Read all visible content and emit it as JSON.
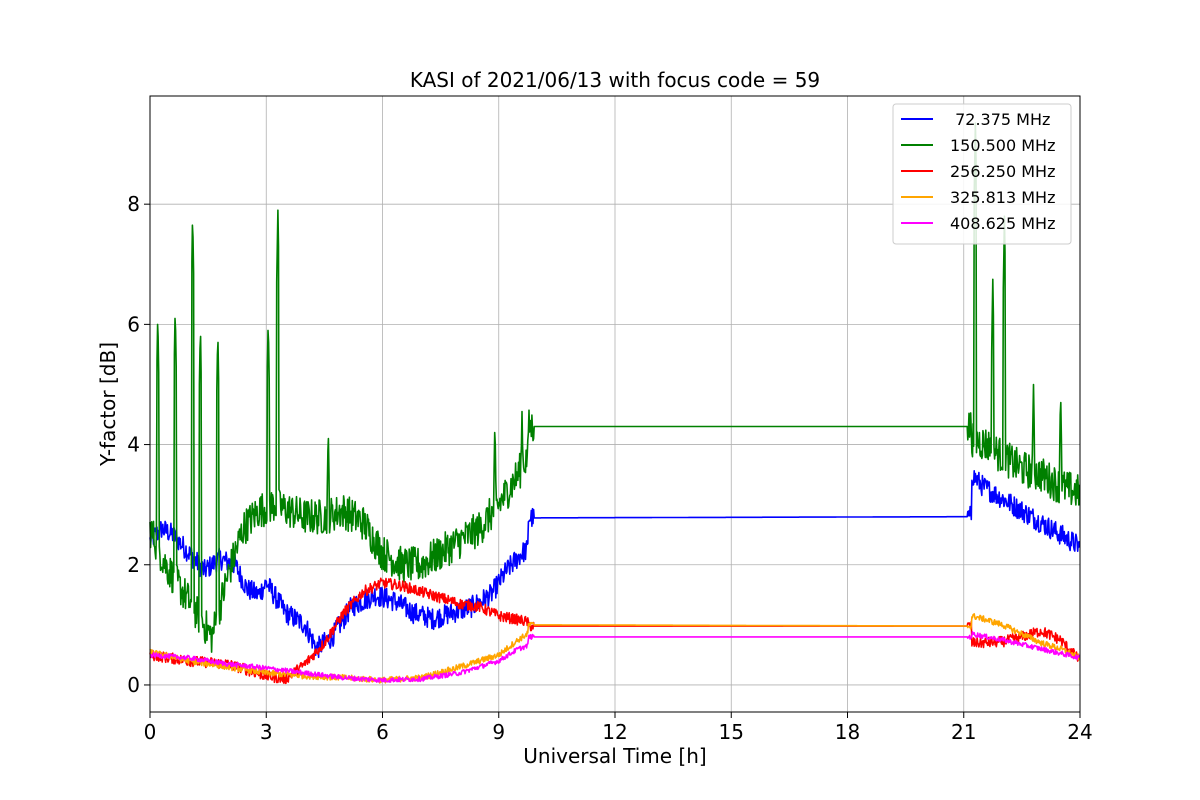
{
  "chart_data": {
    "type": "line",
    "title": "KASI of 2021/06/13 with focus code = 59",
    "xlabel": "Universal Time [h]",
    "ylabel": "Y-factor [dB]",
    "xlim": [
      0,
      24
    ],
    "ylim": [
      -0.45,
      9.8
    ],
    "xticks": [
      0,
      3,
      6,
      9,
      12,
      15,
      18,
      21,
      24
    ],
    "yticks": [
      0,
      2,
      4,
      6,
      8
    ],
    "grid": true,
    "legend_position": "upper right",
    "series": [
      {
        "name": "72.375 MHz",
        "legend_label": " 72.375 MHz",
        "color": "#0000ff",
        "noise": 0.18,
        "x": [
          0,
          0.3,
          0.6,
          1.0,
          1.4,
          1.8,
          2.2,
          2.5,
          2.8,
          3.0,
          3.5,
          4.0,
          4.3,
          4.7,
          5.2,
          5.8,
          6.3,
          6.8,
          7.3,
          7.8,
          8.3,
          8.8,
          9.2,
          9.6,
          9.75,
          9.76,
          21.2,
          21.21,
          21.5,
          22.0,
          22.5,
          23.0,
          23.5,
          24.0
        ],
        "y": [
          2.4,
          2.6,
          2.5,
          2.2,
          1.9,
          2.1,
          2.0,
          1.6,
          1.5,
          1.7,
          1.2,
          1.0,
          0.6,
          0.8,
          1.3,
          1.5,
          1.4,
          1.2,
          1.1,
          1.2,
          1.3,
          1.5,
          1.9,
          2.2,
          2.25,
          2.78,
          2.8,
          3.5,
          3.3,
          3.1,
          2.9,
          2.7,
          2.5,
          2.3
        ]
      },
      {
        "name": "150.500 MHz",
        "legend_label": "150.500 MHz",
        "color": "#008000",
        "noise": 0.3,
        "x": [
          0,
          0.4,
          0.8,
          1.2,
          1.6,
          2.0,
          2.4,
          2.8,
          3.2,
          3.6,
          4.0,
          4.5,
          5.0,
          5.5,
          6.0,
          6.5,
          7.0,
          7.5,
          8.0,
          8.5,
          9.0,
          9.4,
          9.75,
          9.76,
          21.2,
          21.21,
          21.6,
          22.0,
          22.5,
          23.0,
          23.5,
          24.0
        ],
        "y": [
          2.6,
          2.0,
          1.6,
          1.2,
          0.8,
          1.8,
          2.6,
          2.9,
          3.0,
          2.9,
          2.8,
          2.8,
          2.9,
          2.7,
          2.2,
          2.0,
          2.0,
          2.2,
          2.4,
          2.6,
          3.0,
          3.4,
          3.8,
          4.3,
          4.3,
          4.1,
          4.0,
          3.8,
          3.6,
          3.5,
          3.3,
          3.2
        ],
        "spikes": [
          {
            "x": 0.2,
            "y": 6.2
          },
          {
            "x": 0.65,
            "y": 6.3
          },
          {
            "x": 1.1,
            "y": 7.85
          },
          {
            "x": 1.3,
            "y": 6.0
          },
          {
            "x": 1.75,
            "y": 5.9
          },
          {
            "x": 3.05,
            "y": 6.1
          },
          {
            "x": 3.3,
            "y": 7.9
          },
          {
            "x": 4.6,
            "y": 4.3
          },
          {
            "x": 8.9,
            "y": 4.4
          },
          {
            "x": 9.6,
            "y": 4.55
          },
          {
            "x": 21.3,
            "y": 9.35
          },
          {
            "x": 21.75,
            "y": 6.75
          },
          {
            "x": 22.05,
            "y": 7.8
          },
          {
            "x": 22.8,
            "y": 5.0
          },
          {
            "x": 23.5,
            "y": 4.9
          }
        ]
      },
      {
        "name": "256.250 MHz",
        "legend_label": "256.250 MHz",
        "color": "#ff0000",
        "noise": 0.09,
        "x": [
          0,
          1.0,
          2.0,
          3.0,
          3.5,
          4.0,
          4.5,
          5.0,
          5.5,
          6.0,
          6.5,
          7.0,
          7.5,
          8.0,
          8.5,
          9.0,
          9.75,
          9.76,
          21.2,
          21.21,
          21.5,
          22.0,
          22.5,
          23.0,
          23.5,
          24.0
        ],
        "y": [
          0.5,
          0.4,
          0.35,
          0.15,
          0.1,
          0.35,
          0.7,
          1.2,
          1.55,
          1.7,
          1.65,
          1.55,
          1.45,
          1.35,
          1.3,
          1.15,
          1.05,
          0.98,
          0.98,
          0.7,
          0.7,
          0.72,
          0.8,
          0.9,
          0.75,
          0.4
        ]
      },
      {
        "name": "325.813 MHz",
        "legend_label": "325.813 MHz",
        "color": "#ffa500",
        "noise": 0.05,
        "x": [
          0,
          1.0,
          2.0,
          3.0,
          4.0,
          5.0,
          6.0,
          7.0,
          8.0,
          9.0,
          9.5,
          9.75,
          9.76,
          21.2,
          21.21,
          21.5,
          22.0,
          22.5,
          23.0,
          23.5,
          24.0
        ],
        "y": [
          0.55,
          0.4,
          0.3,
          0.2,
          0.15,
          0.12,
          0.08,
          0.12,
          0.3,
          0.5,
          0.75,
          0.85,
          1.0,
          0.98,
          1.15,
          1.1,
          1.0,
          0.85,
          0.7,
          0.6,
          0.45
        ]
      },
      {
        "name": "408.625 MHz",
        "legend_label": "408.625 MHz",
        "color": "#ff00ff",
        "noise": 0.04,
        "x": [
          0,
          1.0,
          2.0,
          3.0,
          4.0,
          5.0,
          6.0,
          7.0,
          8.0,
          9.0,
          9.5,
          9.75,
          9.76,
          21.2,
          21.21,
          22.0,
          23.0,
          24.0
        ],
        "y": [
          0.5,
          0.45,
          0.35,
          0.28,
          0.2,
          0.12,
          0.08,
          0.1,
          0.2,
          0.4,
          0.6,
          0.65,
          0.8,
          0.8,
          0.85,
          0.75,
          0.6,
          0.45
        ]
      }
    ]
  }
}
